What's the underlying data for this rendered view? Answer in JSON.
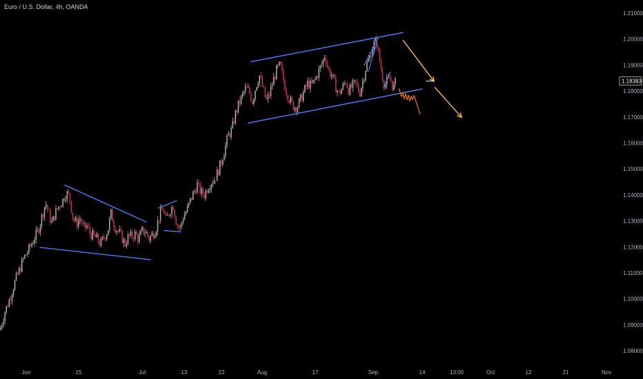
{
  "header": {
    "title": "Euro / U.S. Dollar, 4h, OANDA"
  },
  "price_badge": {
    "value": "1.18383"
  },
  "colors": {
    "background": "#000000",
    "candle_up": "#b0b0b0",
    "candle_down": "#d32f56",
    "trendline": "#4a7cf0",
    "forecast_arrow": "#ffb74d",
    "projection": "#f57c00",
    "badge_bg": "#000000",
    "axis_text": "#b2b5be"
  },
  "chart_data": {
    "type": "candlestick",
    "symbol": "EUR/USD",
    "timeframe": "4h",
    "source": "OANDA",
    "ylim": [
      1.0768,
      1.2135
    ],
    "yticks": [
      "1.21000",
      "1.20000",
      "1.19000",
      "1.18000",
      "1.17000",
      "1.16000",
      "1.15000",
      "1.14000",
      "1.13000",
      "1.12000",
      "1.11000",
      "1.10000",
      "1.09000",
      "1.08000"
    ],
    "xticks": [
      "Jun",
      "15",
      "Jul",
      "13",
      "22",
      "Aug",
      "17",
      "Sep",
      "14",
      "13:00",
      "Oct",
      "12",
      "21",
      "Nov"
    ],
    "last_price": 1.18383,
    "close_path": [
      [
        0,
        1.088
      ],
      [
        7,
        1.095
      ],
      [
        14,
        1.1
      ],
      [
        21,
        1.106
      ],
      [
        28,
        1.111
      ],
      [
        35,
        1.116
      ],
      [
        42,
        1.119
      ],
      [
        49,
        1.123
      ],
      [
        55,
        1.126
      ],
      [
        60,
        1.131
      ],
      [
        66,
        1.137
      ],
      [
        70,
        1.133
      ],
      [
        75,
        1.129
      ],
      [
        80,
        1.133
      ],
      [
        86,
        1.136
      ],
      [
        91,
        1.138
      ],
      [
        96,
        1.141
      ],
      [
        101,
        1.139
      ],
      [
        106,
        1.131
      ],
      [
        111,
        1.129
      ],
      [
        116,
        1.131
      ],
      [
        121,
        1.127
      ],
      [
        126,
        1.128
      ],
      [
        131,
        1.125
      ],
      [
        136,
        1.124
      ],
      [
        141,
        1.123
      ],
      [
        146,
        1.121
      ],
      [
        151,
        1.124
      ],
      [
        156,
        1.126
      ],
      [
        161,
        1.133
      ],
      [
        166,
        1.128
      ],
      [
        171,
        1.126
      ],
      [
        176,
        1.124
      ],
      [
        181,
        1.121
      ],
      [
        186,
        1.124
      ],
      [
        191,
        1.124
      ],
      [
        196,
        1.125
      ],
      [
        201,
        1.123
      ],
      [
        206,
        1.126
      ],
      [
        211,
        1.126
      ],
      [
        216,
        1.123
      ],
      [
        221,
        1.125
      ],
      [
        226,
        1.127
      ],
      [
        231,
        1.132
      ],
      [
        236,
        1.135
      ],
      [
        241,
        1.13
      ],
      [
        246,
        1.134
      ],
      [
        251,
        1.136
      ],
      [
        256,
        1.129
      ],
      [
        261,
        1.127
      ],
      [
        266,
        1.132
      ],
      [
        271,
        1.134
      ],
      [
        276,
        1.138
      ],
      [
        281,
        1.141
      ],
      [
        286,
        1.144
      ],
      [
        291,
        1.141
      ],
      [
        296,
        1.14
      ],
      [
        301,
        1.143
      ],
      [
        306,
        1.145
      ],
      [
        311,
        1.146
      ],
      [
        316,
        1.149
      ],
      [
        321,
        1.153
      ],
      [
        326,
        1.158
      ],
      [
        331,
        1.163
      ],
      [
        336,
        1.165
      ],
      [
        341,
        1.171
      ],
      [
        346,
        1.175
      ],
      [
        351,
        1.178
      ],
      [
        356,
        1.181
      ],
      [
        361,
        1.18
      ],
      [
        366,
        1.176
      ],
      [
        371,
        1.182
      ],
      [
        376,
        1.186
      ],
      [
        381,
        1.181
      ],
      [
        386,
        1.176
      ],
      [
        391,
        1.179
      ],
      [
        396,
        1.184
      ],
      [
        401,
        1.188
      ],
      [
        406,
        1.19
      ],
      [
        411,
        1.184
      ],
      [
        416,
        1.179
      ],
      [
        421,
        1.176
      ],
      [
        426,
        1.174
      ],
      [
        431,
        1.174
      ],
      [
        436,
        1.177
      ],
      [
        441,
        1.18
      ],
      [
        446,
        1.183
      ],
      [
        451,
        1.182
      ],
      [
        456,
        1.184
      ],
      [
        461,
        1.187
      ],
      [
        466,
        1.19
      ],
      [
        471,
        1.194
      ],
      [
        476,
        1.188
      ],
      [
        481,
        1.186
      ],
      [
        486,
        1.182
      ],
      [
        491,
        1.179
      ],
      [
        496,
        1.181
      ],
      [
        501,
        1.184
      ],
      [
        506,
        1.18
      ],
      [
        511,
        1.182
      ],
      [
        516,
        1.183
      ],
      [
        521,
        1.179
      ],
      [
        526,
        1.184
      ],
      [
        531,
        1.19
      ],
      [
        536,
        1.193
      ],
      [
        541,
        1.198
      ],
      [
        546,
        1.199
      ],
      [
        550,
        1.192
      ],
      [
        554,
        1.186
      ],
      [
        558,
        1.182
      ],
      [
        562,
        1.184
      ],
      [
        566,
        1.185
      ],
      [
        570,
        1.181
      ],
      [
        574,
        1.1838
      ]
    ],
    "drawings": {
      "triangle_upper": [
        [
          94,
          1.1438
        ],
        [
          212,
          1.1296
        ]
      ],
      "triangle_lower": [
        [
          58,
          1.1198
        ],
        [
          218,
          1.1151
        ]
      ],
      "flag_upper": [
        [
          230,
          1.135
        ],
        [
          256,
          1.1378
        ]
      ],
      "flag_lower": [
        [
          238,
          1.1263
        ],
        [
          262,
          1.1258
        ]
      ],
      "channel_upper": [
        [
          364,
          1.1913
        ],
        [
          584,
          1.2025
        ]
      ],
      "channel_lower": [
        [
          360,
          1.1677
        ],
        [
          612,
          1.1808
        ]
      ],
      "inner_flag_1": [
        [
          528,
          1.19
        ],
        [
          548,
          1.2004
        ]
      ],
      "inner_flag_2": [
        [
          534,
          1.1876
        ],
        [
          546,
          1.1984
        ]
      ],
      "inner_flag_3": [
        [
          556,
          1.1813
        ],
        [
          566,
          1.1874
        ]
      ],
      "projection_zigzag": [
        [
          578,
          1.181
        ],
        [
          582,
          1.1778
        ],
        [
          584,
          1.1794
        ],
        [
          586,
          1.177
        ],
        [
          588,
          1.179
        ],
        [
          590,
          1.1766
        ],
        [
          592,
          1.1784
        ],
        [
          594,
          1.1762
        ],
        [
          596,
          1.178
        ],
        [
          598,
          1.1767
        ],
        [
          600,
          1.1783
        ],
        [
          604,
          1.1752
        ],
        [
          609,
          1.171
        ]
      ],
      "forecast_arrow_1": [
        [
          584,
          1.1996
        ],
        [
          629,
          1.1838
        ]
      ],
      "forecast_arrow_2": [
        [
          630,
          1.1815
        ],
        [
          669,
          1.1699
        ]
      ],
      "price_marker_tick": [
        [
          618,
          1.1838
        ],
        [
          628,
          1.1838
        ]
      ]
    }
  }
}
